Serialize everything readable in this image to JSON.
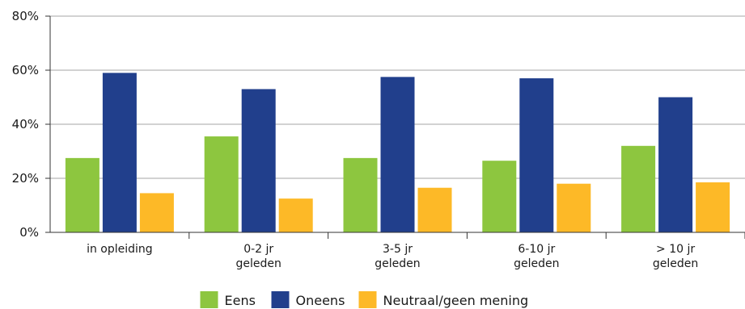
{
  "chart_data": {
    "type": "bar",
    "categories": [
      [
        "in opleiding"
      ],
      [
        "0-2 jr",
        "geleden"
      ],
      [
        "3-5 jr",
        "geleden"
      ],
      [
        "6-10 jr",
        "geleden"
      ],
      [
        "> 10 jr",
        "geleden"
      ]
    ],
    "series": [
      {
        "name": "Eens",
        "color": "#8dc63f",
        "values": [
          27.5,
          35.5,
          27.5,
          26.5,
          32
        ]
      },
      {
        "name": "Oneens",
        "color": "#213f8c",
        "values": [
          59,
          53,
          57.5,
          57,
          50
        ]
      },
      {
        "name": "Neutraal/geen mening",
        "color": "#fdb927",
        "values": [
          14.5,
          12.5,
          16.5,
          18,
          18.5
        ]
      }
    ],
    "yticks": [
      "0%",
      "20%",
      "40%",
      "60%",
      "80%"
    ],
    "ylim": [
      0,
      80
    ],
    "grid": true,
    "gridline_color": "#a6a6a6",
    "legend_position": "bottom-center"
  }
}
